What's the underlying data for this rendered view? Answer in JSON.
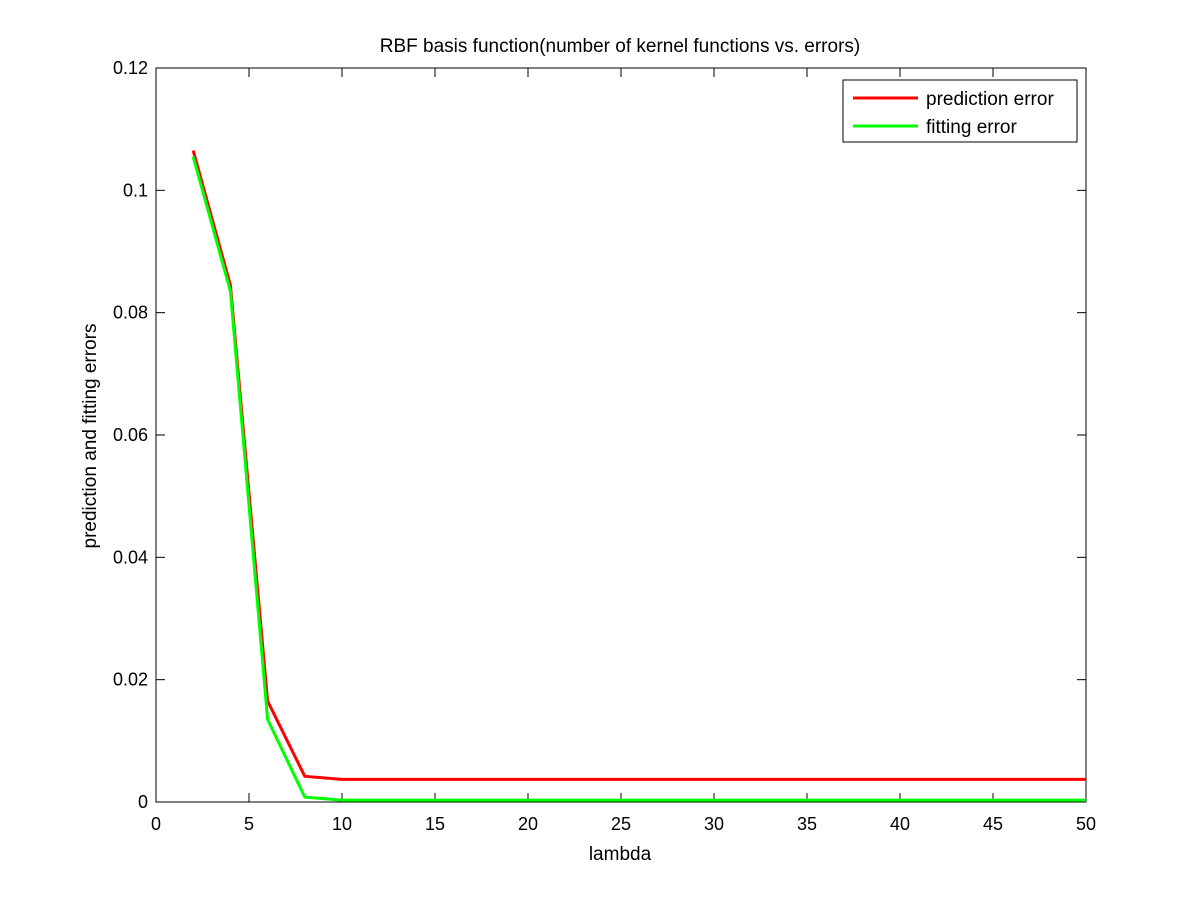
{
  "chart_data": {
    "type": "line",
    "title": "RBF basis function(number of kernel functions vs. errors)",
    "xlabel": "lambda",
    "ylabel": "prediction and fitting errors",
    "xlim": [
      0,
      50
    ],
    "ylim": [
      0,
      0.12
    ],
    "xticks": [
      "0",
      "5",
      "10",
      "15",
      "20",
      "25",
      "30",
      "35",
      "40",
      "45",
      "50"
    ],
    "yticks": [
      "0",
      "0.02",
      "0.04",
      "0.06",
      "0.08",
      "0.1",
      "0.12"
    ],
    "grid": false,
    "legend_position": "top-right",
    "x": [
      2,
      4,
      6,
      8,
      10,
      12,
      14,
      16,
      18,
      20,
      22,
      24,
      26,
      28,
      30,
      32,
      34,
      36,
      38,
      40,
      42,
      44,
      46,
      48,
      50
    ],
    "series": [
      {
        "name": "prediction error",
        "color": "#ff0000",
        "values": [
          0.1065,
          0.0845,
          0.0165,
          0.0042,
          0.0037,
          0.0037,
          0.0037,
          0.0037,
          0.0037,
          0.0037,
          0.0037,
          0.0037,
          0.0037,
          0.0037,
          0.0037,
          0.0037,
          0.0037,
          0.0037,
          0.0037,
          0.0037,
          0.0037,
          0.0037,
          0.0037,
          0.0037,
          0.0037
        ]
      },
      {
        "name": "fitting error",
        "color": "#00ff00",
        "values": [
          0.1055,
          0.0835,
          0.0135,
          0.0008,
          0.0003,
          0.0003,
          0.0003,
          0.0003,
          0.0003,
          0.0003,
          0.0003,
          0.0003,
          0.0003,
          0.0003,
          0.0003,
          0.0003,
          0.0003,
          0.0003,
          0.0003,
          0.0003,
          0.0003,
          0.0003,
          0.0003,
          0.0003,
          0.0003
        ]
      }
    ]
  }
}
